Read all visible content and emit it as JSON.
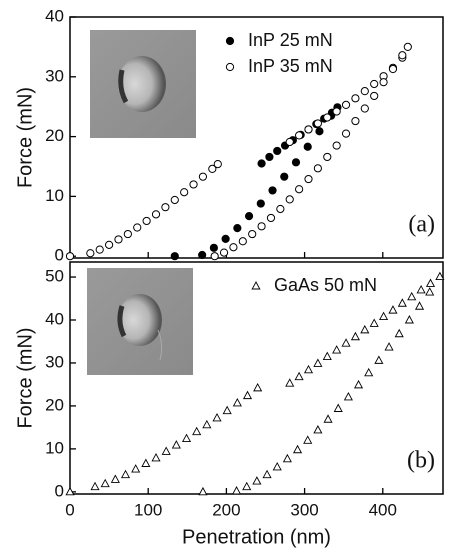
{
  "chart_data": [
    {
      "type": "scatter",
      "ylabel": "Force (mN)",
      "annotation": "(a)",
      "xlim": [
        0,
        477
      ],
      "ylim": [
        -0.3,
        40
      ],
      "yticks": [
        0,
        10,
        20,
        30,
        40
      ],
      "xticks": [
        0,
        100,
        200,
        300,
        400
      ],
      "show_xtick_labels": false,
      "legend": "top-right",
      "series": [
        {
          "name": "InP 25 mN",
          "color": "#000000",
          "marker": "circle",
          "filled": true,
          "x": [
            134,
            169,
            184,
            199,
            214,
            229,
            244,
            259,
            274,
            289,
            304,
            319,
            334,
            245,
            255,
            265,
            275,
            285,
            295,
            305,
            315,
            325,
            335,
            342
          ],
          "y": [
            0,
            0.2,
            1.4,
            2.9,
            4.7,
            6.7,
            8.8,
            11.0,
            13.3,
            15.7,
            18.3,
            20.9,
            23.5,
            15.5,
            16.6,
            17.6,
            18.5,
            19.4,
            20.3,
            21.2,
            22.1,
            23.0,
            24.0,
            24.9
          ]
        },
        {
          "name": "InP 35 mN",
          "color": "#000000",
          "marker": "circle",
          "filled": false,
          "x": [
            0,
            26,
            38,
            50,
            62,
            74,
            86,
            98,
            110,
            122,
            134,
            146,
            158,
            170,
            182,
            189,
            281,
            293,
            305,
            317,
            329,
            341,
            353,
            365,
            377,
            389,
            401,
            413,
            425,
            432,
            185,
            197,
            209,
            221,
            233,
            245,
            257,
            269,
            281,
            293,
            305,
            317,
            329,
            341,
            353,
            365,
            377,
            389,
            401,
            413,
            425
          ],
          "y": [
            0,
            0.5,
            1.1,
            1.9,
            2.8,
            3.7,
            4.8,
            5.9,
            7.0,
            8.2,
            9.4,
            10.7,
            12.0,
            13.3,
            14.6,
            15.4,
            19.1,
            20.2,
            21.2,
            22.2,
            23.2,
            24.2,
            25.3,
            26.4,
            27.6,
            28.8,
            30.1,
            31.5,
            33.2,
            35.0,
            0.0,
            0.6,
            1.5,
            2.5,
            3.7,
            5.0,
            6.4,
            7.9,
            9.5,
            11.2,
            12.9,
            14.7,
            16.6,
            18.5,
            20.5,
            22.6,
            24.7,
            26.8,
            29.1,
            31.3,
            33.6
          ]
        }
      ]
    },
    {
      "type": "scatter",
      "ylabel": "Force (mN)",
      "xlabel": "Penetration (nm)",
      "annotation": "(b)",
      "xlim": [
        0,
        477
      ],
      "ylim": [
        -0.5,
        53.5
      ],
      "yticks": [
        0,
        10,
        20,
        30,
        40,
        50
      ],
      "xticks": [
        0,
        100,
        200,
        300,
        400
      ],
      "show_xtick_labels": true,
      "legend": "top-right",
      "series": [
        {
          "name": "GaAs 50 mN",
          "color": "#000000",
          "marker": "triangle",
          "filled": false,
          "x": [
            0,
            170,
            32,
            45,
            58,
            71,
            84,
            97,
            110,
            123,
            136,
            149,
            162,
            175,
            188,
            201,
            214,
            227,
            240,
            281,
            293,
            305,
            317,
            329,
            341,
            353,
            365,
            377,
            389,
            401,
            413,
            425,
            437,
            449,
            461,
            473,
            213,
            226,
            239,
            252,
            265,
            278,
            291,
            304,
            317,
            330,
            343,
            356,
            369,
            382,
            395,
            408,
            421,
            434,
            447,
            460
          ],
          "y": [
            0,
            0,
            1.2,
            1.9,
            2.9,
            4.0,
            5.3,
            6.6,
            7.9,
            9.4,
            10.9,
            12.4,
            14.0,
            15.6,
            17.2,
            18.9,
            20.7,
            22.4,
            24.2,
            25.3,
            26.8,
            28.4,
            29.9,
            31.5,
            33.0,
            34.6,
            36.1,
            37.7,
            39.2,
            40.8,
            42.3,
            43.9,
            45.4,
            47.0,
            48.5,
            50.1,
            0.2,
            1.2,
            2.5,
            4.0,
            5.8,
            7.7,
            9.8,
            12.0,
            14.4,
            16.9,
            19.4,
            22.1,
            24.9,
            27.7,
            30.6,
            33.7,
            36.8,
            40.0,
            43.2,
            46.5
          ]
        }
      ]
    }
  ]
}
